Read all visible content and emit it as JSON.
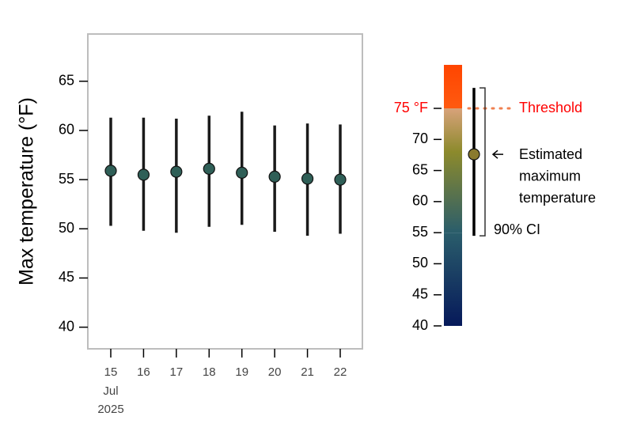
{
  "chart_data": [
    {
      "type": "errorbar",
      "y_label": "Max temperature (°F)",
      "categories": [
        "15",
        "16",
        "17",
        "18",
        "19",
        "20",
        "21",
        "22"
      ],
      "x_month": "Jul",
      "x_year": "2025",
      "values": [
        55.9,
        55.5,
        55.8,
        56.1,
        55.7,
        55.3,
        55.1,
        55.0
      ],
      "lower": [
        50.3,
        49.8,
        49.6,
        50.2,
        50.4,
        49.7,
        49.3,
        49.5
      ],
      "upper": [
        61.3,
        61.3,
        61.2,
        61.5,
        61.9,
        60.5,
        60.7,
        60.6
      ],
      "color": "#2f5f57",
      "ylim": [
        37.8,
        69.8
      ],
      "yticks": [
        40,
        45,
        50,
        55,
        60,
        65
      ]
    },
    {
      "type": "colorbar",
      "ylim": [
        40,
        82
      ],
      "yticks": [
        40,
        45,
        50,
        55,
        60,
        65,
        70,
        {
          "value": 75,
          "label": "75 °F"
        }
      ],
      "color_stops": [
        40,
        55,
        68,
        75,
        75,
        82
      ],
      "colors": [
        "#06195a",
        "#2a5d6b",
        "#8c8a2c",
        "#d8a27a",
        "#ff5a10",
        "#ff4500"
      ],
      "threshold": 75,
      "threshold_label": "Threshold",
      "threshold_color": "#ff0000",
      "example": {
        "value": 67.6,
        "lower": 54.5,
        "upper": 78.3,
        "color": "#8a7a2e"
      },
      "estimate_label": [
        "Estimated",
        "maximum",
        "temperature"
      ],
      "ci_label": "90% CI"
    }
  ]
}
